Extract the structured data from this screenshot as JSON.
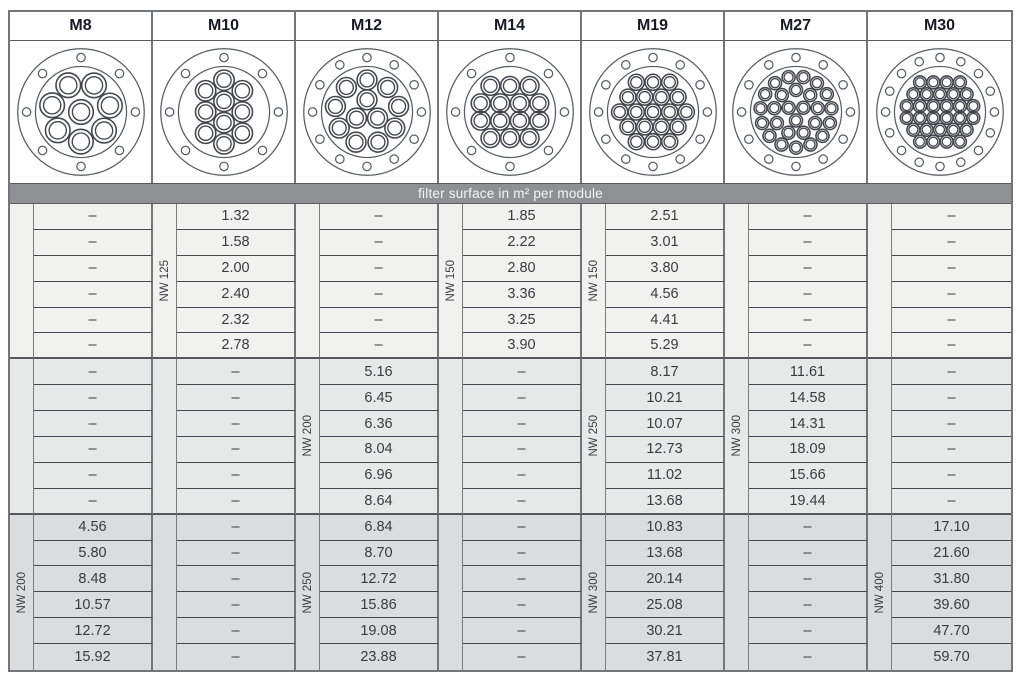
{
  "banner": {
    "text": "filter surface in m² per module"
  },
  "modules": [
    {
      "name": "M8",
      "tubes": 8,
      "bolt_holes": 8,
      "sections": [
        {
          "nw": "",
          "values": [
            "–",
            "–",
            "–",
            "–",
            "–",
            "–"
          ]
        },
        {
          "nw": "",
          "values": [
            "–",
            "–",
            "–",
            "–",
            "–",
            "–"
          ]
        },
        {
          "nw": "NW 200",
          "values": [
            "4.56",
            "5.80",
            "8.48",
            "10.57",
            "12.72",
            "15.92"
          ]
        }
      ]
    },
    {
      "name": "M10",
      "tubes": 10,
      "bolt_holes": 8,
      "sections": [
        {
          "nw": "NW 125",
          "values": [
            "1.32",
            "1.58",
            "2.00",
            "2.40",
            "2.32",
            "2.78"
          ]
        },
        {
          "nw": "",
          "values": [
            "–",
            "–",
            "–",
            "–",
            "–",
            "–"
          ]
        },
        {
          "nw": "",
          "values": [
            "–",
            "–",
            "–",
            "–",
            "–",
            "–"
          ]
        }
      ]
    },
    {
      "name": "M12",
      "tubes": 12,
      "bolt_holes": 12,
      "sections": [
        {
          "nw": "",
          "values": [
            "–",
            "–",
            "–",
            "–",
            "–",
            "–"
          ]
        },
        {
          "nw": "NW 200",
          "values": [
            "5.16",
            "6.45",
            "6.36",
            "8.04",
            "6.96",
            "8.64"
          ]
        },
        {
          "nw": "NW 250",
          "values": [
            "6.84",
            "8.70",
            "12.72",
            "15.86",
            "19.08",
            "23.88"
          ]
        }
      ]
    },
    {
      "name": "M14",
      "tubes": 14,
      "bolt_holes": 8,
      "sections": [
        {
          "nw": "NW 150",
          "values": [
            "1.85",
            "2.22",
            "2.80",
            "3.36",
            "3.25",
            "3.90"
          ]
        },
        {
          "nw": "",
          "values": [
            "–",
            "–",
            "–",
            "–",
            "–",
            "–"
          ]
        },
        {
          "nw": "",
          "values": [
            "–",
            "–",
            "–",
            "–",
            "–",
            "–"
          ]
        }
      ]
    },
    {
      "name": "M19",
      "tubes": 19,
      "bolt_holes": 12,
      "sections": [
        {
          "nw": "NW 150",
          "values": [
            "2.51",
            "3.01",
            "3.80",
            "4.56",
            "4.41",
            "5.29"
          ]
        },
        {
          "nw": "NW 250",
          "values": [
            "8.17",
            "10.21",
            "10.07",
            "12.73",
            "11.02",
            "13.68"
          ]
        },
        {
          "nw": "NW 300",
          "values": [
            "10.83",
            "13.68",
            "20.14",
            "25.08",
            "30.21",
            "37.81"
          ]
        }
      ]
    },
    {
      "name": "M27",
      "tubes": 27,
      "bolt_holes": 12,
      "sections": [
        {
          "nw": "",
          "values": [
            "–",
            "–",
            "–",
            "–",
            "–",
            "–"
          ]
        },
        {
          "nw": "NW 300",
          "values": [
            "11.61",
            "14.58",
            "14.31",
            "18.09",
            "15.66",
            "19.44"
          ]
        },
        {
          "nw": "",
          "values": [
            "–",
            "–",
            "–",
            "–",
            "–",
            "–"
          ]
        }
      ]
    },
    {
      "name": "M30",
      "tubes": 30,
      "bolt_holes": 16,
      "sections": [
        {
          "nw": "",
          "values": [
            "–",
            "–",
            "–",
            "–",
            "–",
            "–"
          ]
        },
        {
          "nw": "",
          "values": [
            "–",
            "–",
            "–",
            "–",
            "–",
            "–"
          ]
        },
        {
          "nw": "NW 400",
          "values": [
            "17.10",
            "21.60",
            "31.80",
            "39.60",
            "47.70",
            "59.70"
          ]
        }
      ]
    }
  ],
  "colors": {
    "banner_bg": "#8f9094",
    "group1_bg": "#f1f1f0",
    "group2_bg": "#e7e8e8",
    "group3_bg": "#dadcdd",
    "header_text": "#181922",
    "value_text": "#3a3b40",
    "grid_line": "#73757a"
  }
}
